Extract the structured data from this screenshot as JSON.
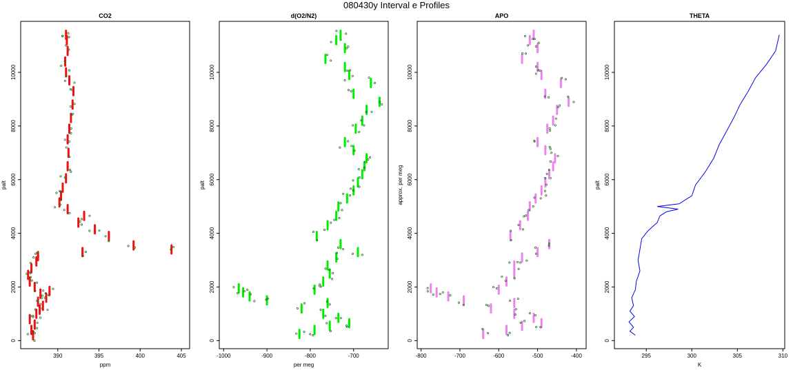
{
  "figure_title": "080430y   Interval e Profiles",
  "chart_data": [
    {
      "type": "scatter",
      "title": "CO2",
      "xlabel": "ppm",
      "ylabel": "palt",
      "xlim": [
        385.5,
        406
      ],
      "ylim": [
        -300,
        11900
      ],
      "xticks": [
        390,
        395,
        400,
        405
      ],
      "yticks": [
        0,
        2000,
        4000,
        6000,
        8000,
        10000
      ],
      "series": [
        {
          "color": "#ee1111",
          "marker": "continuous-segments",
          "points": [
            [
              387,
              200
            ],
            [
              386.8,
              400
            ],
            [
              387.2,
              600
            ],
            [
              386.6,
              800
            ],
            [
              387.4,
              1000
            ],
            [
              387.8,
              1150
            ],
            [
              388.2,
              1300
            ],
            [
              387.6,
              1450
            ],
            [
              388.6,
              1600
            ],
            [
              387.9,
              1750
            ],
            [
              389,
              1850
            ],
            [
              387.2,
              2000
            ],
            [
              386.6,
              2200
            ],
            [
              386.4,
              2450
            ],
            [
              386.8,
              2700
            ],
            [
              387.4,
              2950
            ],
            [
              387.6,
              3150
            ],
            [
              393,
              3300
            ],
            [
              399.2,
              3550
            ],
            [
              403.8,
              3400
            ],
            [
              396.2,
              3900
            ],
            [
              394.5,
              4150
            ],
            [
              392.5,
              4400
            ],
            [
              393.2,
              4650
            ],
            [
              391.2,
              4900
            ],
            [
              390.2,
              5150
            ],
            [
              390.4,
              5400
            ],
            [
              390.6,
              5700
            ],
            [
              391,
              6050
            ],
            [
              391.2,
              6500
            ],
            [
              391.3,
              7000
            ],
            [
              391.2,
              7500
            ],
            [
              391.4,
              7900
            ],
            [
              391.6,
              8300
            ],
            [
              391.8,
              8800
            ],
            [
              391.9,
              9300
            ],
            [
              391.4,
              9700
            ],
            [
              391,
              10000
            ],
            [
              390.9,
              10400
            ],
            [
              391.2,
              10800
            ],
            [
              391.1,
              11200
            ],
            [
              391,
              11400
            ]
          ]
        }
      ]
    },
    {
      "type": "scatter",
      "title": "d(O2/N2)",
      "xlabel": "per meg",
      "ylabel": "palt",
      "xlim": [
        -1010,
        -620
      ],
      "ylim": [
        -300,
        11900
      ],
      "xticks": [
        -1000,
        -900,
        -800,
        -700
      ],
      "yticks": [
        0,
        2000,
        4000,
        6000,
        8000,
        10000
      ],
      "series": [
        {
          "color": "#00ee00",
          "marker": "continuous-segments",
          "points": [
            [
              -825,
              250
            ],
            [
              -790,
              400
            ],
            [
              -755,
              550
            ],
            [
              -710,
              650
            ],
            [
              -735,
              850
            ],
            [
              -770,
              1000
            ],
            [
              -820,
              1200
            ],
            [
              -760,
              1400
            ],
            [
              -900,
              1500
            ],
            [
              -940,
              1650
            ],
            [
              -955,
              1800
            ],
            [
              -965,
              1950
            ],
            [
              -790,
              1900
            ],
            [
              -770,
              2200
            ],
            [
              -755,
              2500
            ],
            [
              -760,
              2800
            ],
            [
              -740,
              3100
            ],
            [
              -690,
              3300
            ],
            [
              -730,
              3600
            ],
            [
              -785,
              3900
            ],
            [
              -760,
              4300
            ],
            [
              -740,
              4650
            ],
            [
              -735,
              5000
            ],
            [
              -715,
              5300
            ],
            [
              -700,
              5600
            ],
            [
              -690,
              5900
            ],
            [
              -680,
              6200
            ],
            [
              -675,
              6500
            ],
            [
              -670,
              6800
            ],
            [
              -700,
              7100
            ],
            [
              -720,
              7400
            ],
            [
              -695,
              7900
            ],
            [
              -680,
              8200
            ],
            [
              -670,
              8600
            ],
            [
              -640,
              8900
            ],
            [
              -700,
              9200
            ],
            [
              -660,
              9600
            ],
            [
              -710,
              9900
            ],
            [
              -720,
              10200
            ],
            [
              -765,
              10500
            ],
            [
              -720,
              10900
            ],
            [
              -740,
              11200
            ],
            [
              -730,
              11400
            ]
          ]
        }
      ]
    },
    {
      "type": "scatter",
      "title": "APO",
      "xlabel": "",
      "ylabel": "approx. per meg",
      "xlim": [
        -810,
        -375
      ],
      "ylim": [
        -300,
        11900
      ],
      "xticks": [
        -800,
        -700,
        -600,
        -500,
        -400
      ],
      "yticks": [
        0,
        2000,
        4000,
        6000,
        8000,
        10000
      ],
      "series": [
        {
          "color": "#ee82ee",
          "marker": "continuous-segments",
          "points": [
            [
              -640,
              250
            ],
            [
              -580,
              400
            ],
            [
              -540,
              550
            ],
            [
              -490,
              650
            ],
            [
              -510,
              850
            ],
            [
              -560,
              1000
            ],
            [
              -620,
              1200
            ],
            [
              -560,
              1400
            ],
            [
              -690,
              1500
            ],
            [
              -730,
              1650
            ],
            [
              -760,
              1800
            ],
            [
              -775,
              1950
            ],
            [
              -600,
              1900
            ],
            [
              -580,
              2200
            ],
            [
              -560,
              2500
            ],
            [
              -560,
              2800
            ],
            [
              -540,
              3100
            ],
            [
              -500,
              3300
            ],
            [
              -470,
              3600
            ],
            [
              -570,
              3900
            ],
            [
              -545,
              4300
            ],
            [
              -525,
              4650
            ],
            [
              -520,
              5000
            ],
            [
              -505,
              5300
            ],
            [
              -490,
              5600
            ],
            [
              -480,
              5900
            ],
            [
              -470,
              6200
            ],
            [
              -460,
              6500
            ],
            [
              -455,
              6800
            ],
            [
              -480,
              7100
            ],
            [
              -500,
              7400
            ],
            [
              -475,
              7900
            ],
            [
              -460,
              8200
            ],
            [
              -450,
              8600
            ],
            [
              -420,
              8900
            ],
            [
              -480,
              9200
            ],
            [
              -440,
              9600
            ],
            [
              -490,
              9900
            ],
            [
              -500,
              10200
            ],
            [
              -540,
              10500
            ],
            [
              -500,
              10900
            ],
            [
              -520,
              11200
            ],
            [
              -510,
              11400
            ]
          ]
        }
      ]
    },
    {
      "type": "line",
      "title": "THETA",
      "xlabel": "K",
      "ylabel": "palt",
      "xlim": [
        291.5,
        310.2
      ],
      "ylim": [
        -300,
        11900
      ],
      "xticks": [
        295,
        300,
        305,
        310
      ],
      "yticks": [
        0,
        2000,
        4000,
        6000,
        8000,
        10000
      ],
      "series": [
        {
          "color": "#0000ee",
          "points": [
            [
              293.8,
              200
            ],
            [
              293.2,
              350
            ],
            [
              293.6,
              500
            ],
            [
              293.1,
              700
            ],
            [
              293.7,
              900
            ],
            [
              293.2,
              1100
            ],
            [
              293.6,
              1300
            ],
            [
              293.4,
              1600
            ],
            [
              293.8,
              1900
            ],
            [
              293.9,
              2200
            ],
            [
              294.3,
              2600
            ],
            [
              294.1,
              3000
            ],
            [
              294.3,
              3400
            ],
            [
              294.5,
              3800
            ],
            [
              295.2,
              4100
            ],
            [
              296.2,
              4400
            ],
            [
              296.5,
              4650
            ],
            [
              297.2,
              4800
            ],
            [
              298.5,
              4900
            ],
            [
              296.2,
              5000
            ],
            [
              298.6,
              5100
            ],
            [
              300,
              5400
            ],
            [
              300.4,
              5800
            ],
            [
              301.5,
              6300
            ],
            [
              302.4,
              6800
            ],
            [
              303,
              7300
            ],
            [
              303.8,
              7800
            ],
            [
              304.6,
              8300
            ],
            [
              305.3,
              8800
            ],
            [
              306.2,
              9300
            ],
            [
              307,
              9800
            ],
            [
              308.2,
              10300
            ],
            [
              309.2,
              10800
            ],
            [
              309.6,
              11400
            ]
          ]
        }
      ]
    }
  ]
}
